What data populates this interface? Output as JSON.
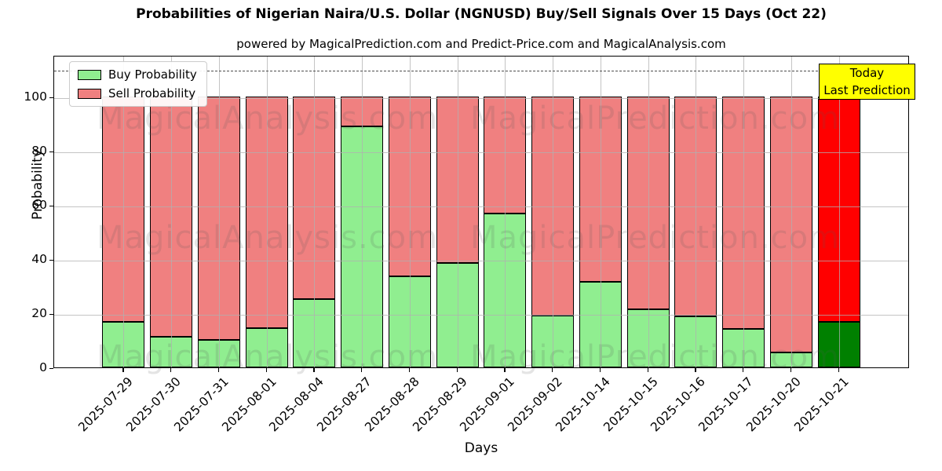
{
  "title": "Probabilities of Nigerian Naira/U.S. Dollar (NGNUSD) Buy/Sell Signals Over 15 Days (Oct 22)",
  "subtitle": "powered by MagicalPrediction.com and Predict-Price.com and MagicalAnalysis.com",
  "legend": {
    "buy_label": "Buy Probability",
    "sell_label": "Sell Probability"
  },
  "annotation_box": {
    "line1": "Today",
    "line2": "Last Prediction",
    "bg_color": "#ffff00"
  },
  "watermarks": {
    "left_text": "MagicalAnalysis.com",
    "right_text": "MagicalPrediction.com"
  },
  "colors": {
    "buy": "#90ee90",
    "sell": "#f08080",
    "last_buy": "#008000",
    "last_sell": "#ff0000",
    "bar_edge": "#000000",
    "grid": "#b0b0b0",
    "dashed_line": "#4d4d4d"
  },
  "chart_data": {
    "type": "bar",
    "stacked": true,
    "title": "Probabilities of Nigerian Naira/U.S. Dollar (NGNUSD) Buy/Sell Signals Over 15 Days (Oct 22)",
    "xlabel": "Days",
    "ylabel": "Probability",
    "categories": [
      "2025-07-29",
      "2025-07-30",
      "2025-07-31",
      "2025-08-01",
      "2025-08-04",
      "2025-08-27",
      "2025-08-28",
      "2025-08-29",
      "2025-09-01",
      "2025-09-02",
      "2025-10-14",
      "2025-10-15",
      "2025-10-16",
      "2025-10-17",
      "2025-10-20",
      "2025-10-21"
    ],
    "series": [
      {
        "name": "Buy Probability",
        "color": "#90ee90",
        "values": [
          16.7,
          11.3,
          10.0,
          14.5,
          25.3,
          88.8,
          33.6,
          38.4,
          56.8,
          19.0,
          31.7,
          21.4,
          18.9,
          14.3,
          5.4,
          16.7
        ]
      },
      {
        "name": "Sell Probability",
        "color": "#f08080",
        "values": [
          83.3,
          88.7,
          90.0,
          85.5,
          74.7,
          11.2,
          66.4,
          61.6,
          43.2,
          81.0,
          68.3,
          78.6,
          81.1,
          85.7,
          94.6,
          83.3
        ]
      }
    ],
    "last_bar_highlight": {
      "buy_color": "#008000",
      "sell_color": "#ff0000"
    },
    "yticks": [
      0,
      20,
      40,
      60,
      80,
      100
    ],
    "ylim": [
      0,
      115.3
    ],
    "dashed_line_y": 110,
    "grid": true,
    "legend_position": "upper left"
  }
}
